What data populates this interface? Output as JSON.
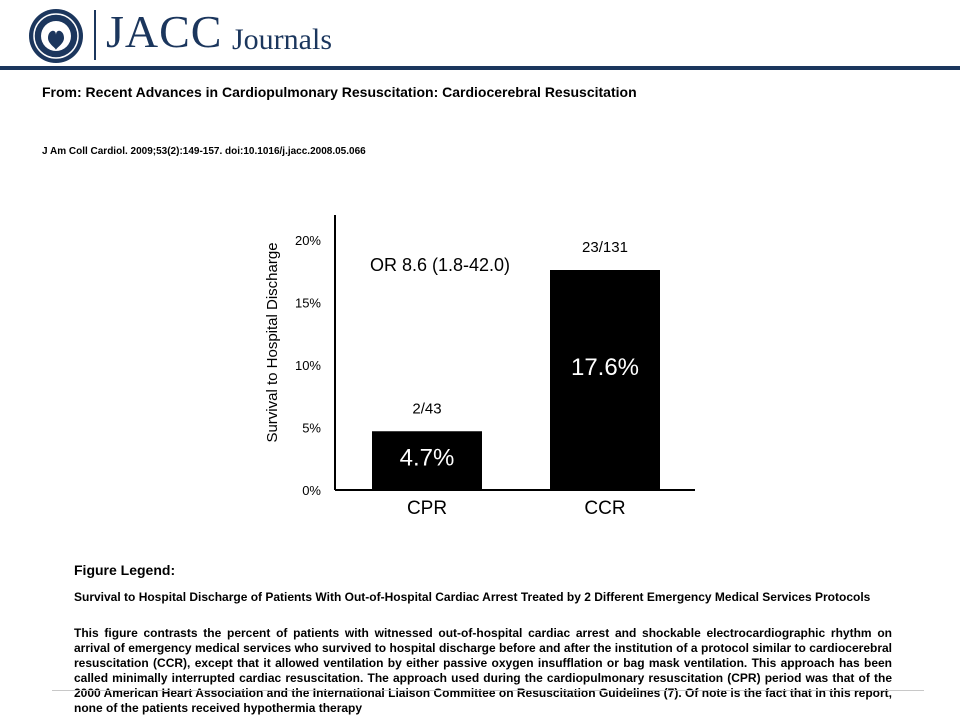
{
  "header": {
    "brand_main": "JACC",
    "brand_sub": "Journals",
    "seal_color": "#1b365d"
  },
  "article": {
    "from_line": "From: Recent Advances in Cardiopulmonary Resuscitation: Cardiocerebral Resuscitation",
    "citation": "J Am Coll Cardiol. 2009;53(2):149-157. doi:10.1016/j.jacc.2008.05.066"
  },
  "chart_data": {
    "type": "bar",
    "categories": [
      "CPR",
      "CCR"
    ],
    "values": [
      4.7,
      17.6
    ],
    "bar_labels": [
      "4.7%",
      "17.6%"
    ],
    "counts": [
      "2/43",
      "23/131"
    ],
    "annotation": "OR 8.6 (1.8-42.0)",
    "ylabel": "Survival to Hospital Discharge",
    "ylim": [
      0,
      20
    ],
    "yticks": [
      0,
      5,
      10,
      15,
      20
    ],
    "ytick_labels": [
      "0%",
      "5%",
      "10%",
      "15%",
      "20%"
    ],
    "bar_color": "#000000",
    "grid": false
  },
  "legend": {
    "title": "Figure Legend:",
    "subtitle": "Survival to Hospital Discharge of Patients With Out-of-Hospital Cardiac Arrest Treated by 2 Different Emergency Medical Services Protocols",
    "body": "This figure contrasts the percent of patients with witnessed out-of-hospital cardiac arrest and shockable electrocardiographic rhythm on arrival of emergency medical services who survived to hospital discharge before and after the institution of a protocol similar to cardiocerebral resuscitation (CCR), except that it allowed ventilation by either passive oxygen insufflation or bag mask ventilation. This approach has been called minimally interrupted cardiac resuscitation. The approach used during the cardiopulmonary resuscitation (CPR) period was that of the 2000 American Heart Association and the International Liaison Committee on Resuscitation Guidelines (7). Of note is the fact that in this report, none of the patients received hypothermia therapy"
  }
}
